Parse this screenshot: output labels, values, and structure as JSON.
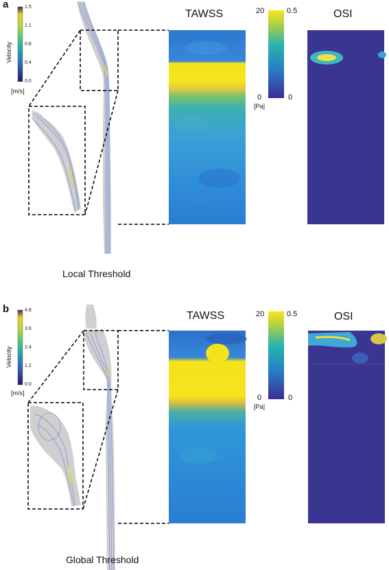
{
  "panels": [
    {
      "letter": "a",
      "caption": "Local Threshold",
      "velocity_legend": {
        "title": "Velocity",
        "unit": "[m/s]",
        "ticks": [
          "1.5",
          "1.1",
          "0.8",
          "0.4",
          "0.0"
        ]
      },
      "tawss": {
        "title": "TAWSS",
        "range_labels": [
          "20",
          "0"
        ],
        "unit": "[Pa]"
      },
      "osi": {
        "title": "OSI",
        "range_labels": [
          "0.5",
          "0"
        ]
      }
    },
    {
      "letter": "b",
      "caption": "Global Threshold",
      "velocity_legend": {
        "title": "Velocity",
        "unit": "[m/s]",
        "ticks": [
          "4.8",
          "3.6",
          "2.4",
          "1.2",
          "0.0"
        ]
      },
      "tawss": {
        "title": "TAWSS",
        "range_labels": [
          "20",
          "0"
        ],
        "unit": "[Pa]"
      },
      "osi": {
        "title": "OSI",
        "range_labels": [
          "0.5",
          "0"
        ]
      }
    }
  ],
  "colors": {
    "viridis_top": "#fde725",
    "viridis_mid": "#21918c",
    "viridis_low": "#3b528b",
    "viridis_bottom": "#440154",
    "osi_background": "#3a3591",
    "vessel_gray": "#c9c9c9",
    "streamline_blue": "#7b8fd6"
  }
}
